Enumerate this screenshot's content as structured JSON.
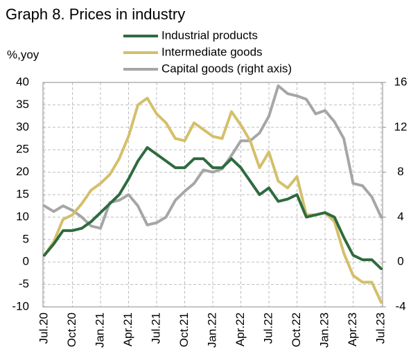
{
  "chart_data": {
    "type": "line",
    "title": "Graph 8. Prices in industry",
    "y_label": "%,yoy",
    "categories": [
      "Jul.20",
      null,
      null,
      "Oct.20",
      null,
      null,
      "Jan.21",
      null,
      null,
      "Apr.21",
      null,
      null,
      "Jul.21",
      null,
      null,
      "Oct.21",
      null,
      null,
      "Jan.22",
      null,
      null,
      "Apr.22",
      null,
      null,
      "Jul.22",
      null,
      null,
      "Oct.22",
      null,
      null,
      "Jan.23",
      null,
      null,
      "Apr.23",
      null,
      null,
      "Jul.23"
    ],
    "series": [
      {
        "name": "Industrial products",
        "color": "#2e6b3f",
        "values": [
          1.5,
          4,
          7,
          7,
          7.5,
          9,
          11,
          13,
          15,
          18.5,
          22.5,
          25.5,
          24,
          22.5,
          21,
          21,
          23,
          23,
          21,
          21,
          23,
          21,
          18,
          15,
          16.5,
          13.5,
          14,
          15,
          10,
          10.5,
          11,
          10,
          5.5,
          1.5,
          0.5,
          0.5,
          -1.5
        ]
      },
      {
        "name": "Intermediate goods",
        "color": "#d4bf6a",
        "values": [
          1.5,
          4.5,
          9.5,
          10.5,
          13,
          16,
          17.5,
          19.5,
          23,
          28,
          35,
          36.5,
          33,
          31,
          27.5,
          27,
          31,
          29.5,
          28,
          27.5,
          33.5,
          30.5,
          27,
          21,
          24.5,
          18,
          16.5,
          19,
          10.5,
          10.5,
          11,
          9,
          2,
          -3,
          -4.5,
          -4.5,
          -9
        ]
      },
      {
        "name": "Capital goods (right axis)",
        "color": "#a6a6a6",
        "axis": "y2",
        "values": [
          5,
          4.5,
          5,
          4.6,
          4,
          3.2,
          3,
          5.3,
          5.5,
          6,
          5,
          3.3,
          3.5,
          4,
          5.5,
          6.3,
          7,
          8.2,
          8,
          8.3,
          9.5,
          10.8,
          10.8,
          11.5,
          13,
          15.7,
          15,
          14.8,
          14.5,
          13.2,
          13.5,
          12.5,
          11,
          7,
          6.8,
          5.8,
          4
        ]
      }
    ],
    "ylim": [
      -10,
      40
    ],
    "yticks": [
      -10,
      -5,
      0,
      5,
      10,
      15,
      20,
      25,
      30,
      35,
      40
    ],
    "y2lim": [
      -4,
      16
    ],
    "y2ticks": [
      -4,
      0,
      4,
      8,
      12,
      16
    ],
    "grid": true
  }
}
